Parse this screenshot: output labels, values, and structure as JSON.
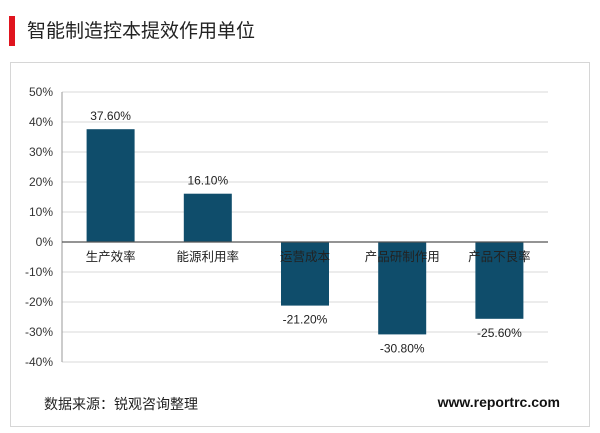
{
  "title": "智能制造控本提效作用单位",
  "source": "数据来源：锐观咨询整理",
  "website": "www.reportrc.com",
  "colors": {
    "bar": "#0f4d6b",
    "accent": "#e0141e",
    "grid": "#d9d9d9"
  },
  "chart_data": {
    "type": "bar",
    "categories": [
      "生产效率",
      "能源利用率",
      "运营成本",
      "产品研制作用",
      "产品不良率"
    ],
    "values": [
      37.6,
      16.1,
      -21.2,
      -30.8,
      -25.6
    ],
    "value_labels": [
      "37.60%",
      "16.10%",
      "-21.20%",
      "-30.80%",
      "-25.60%"
    ],
    "ylim": [
      -40,
      50
    ],
    "yticks": [
      50,
      40,
      30,
      20,
      10,
      0,
      -10,
      -20,
      -30,
      -40
    ],
    "ytick_labels": [
      "50%",
      "40%",
      "30%",
      "20%",
      "10%",
      "0%",
      "-10%",
      "-20%",
      "-30%",
      "-40%"
    ],
    "grid": true,
    "legend": false
  }
}
